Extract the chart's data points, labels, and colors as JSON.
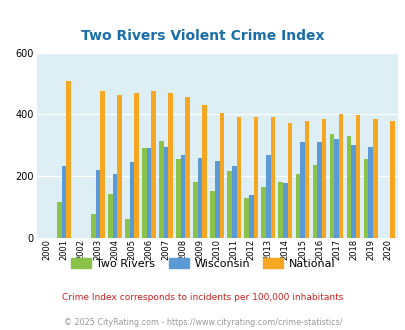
{
  "title": "Two Rivers Violent Crime Index",
  "years": [
    2000,
    2001,
    2002,
    2003,
    2004,
    2005,
    2006,
    2007,
    2008,
    2009,
    2010,
    2011,
    2012,
    2013,
    2014,
    2015,
    2016,
    2017,
    2018,
    2019,
    2020
  ],
  "two_rivers": [
    0,
    115,
    0,
    78,
    140,
    60,
    290,
    315,
    255,
    180,
    150,
    215,
    130,
    165,
    180,
    205,
    235,
    335,
    330,
    255,
    0
  ],
  "wisconsin": [
    0,
    232,
    0,
    218,
    208,
    245,
    290,
    295,
    268,
    258,
    248,
    234,
    138,
    268,
    178,
    310,
    310,
    320,
    302,
    295,
    0
  ],
  "national": [
    0,
    510,
    0,
    475,
    462,
    470,
    475,
    468,
    458,
    430,
    405,
    390,
    390,
    390,
    372,
    378,
    385,
    400,
    398,
    385,
    380
  ],
  "two_rivers_color": "#8bc34a",
  "wisconsin_color": "#5b9bd5",
  "national_color": "#f5a623",
  "bg_color": "#ddeef5",
  "ylim": [
    0,
    600
  ],
  "yticks": [
    0,
    200,
    400,
    600
  ],
  "legend_labels": [
    "Two Rivers",
    "Wisconsin",
    "National"
  ],
  "footnote1": "Crime Index corresponds to incidents per 100,000 inhabitants",
  "footnote2": "© 2025 CityRating.com - https://www.cityrating.com/crime-statistics/",
  "footnote1_color": "#cc2222",
  "footnote2_color": "#999999",
  "title_color": "#1a6ea8"
}
